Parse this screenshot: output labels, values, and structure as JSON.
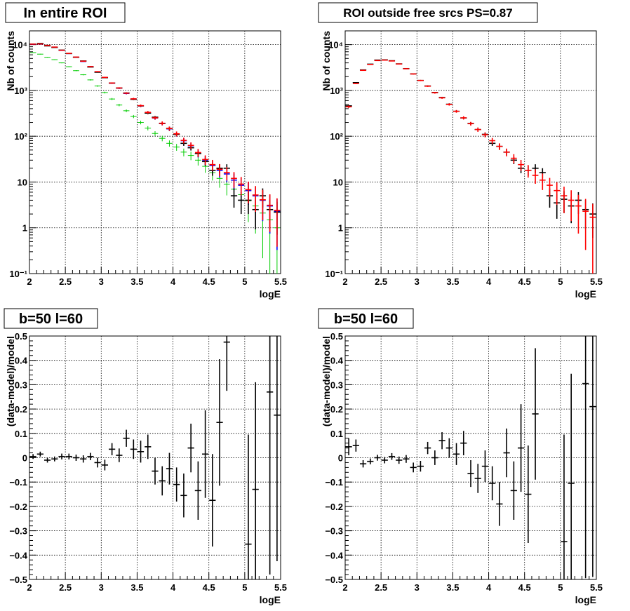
{
  "colors": {
    "data": "#000000",
    "model_total": "#ff0000",
    "model_blue": "#0000ff",
    "model_green": "#00cc00",
    "grid": "#000000"
  },
  "chart_data": [
    {
      "type": "scatter",
      "title": "In entire ROI",
      "xlabel": "logE",
      "ylabel": "Nb of counts",
      "xlim": [
        2,
        5.5
      ],
      "ylim": [
        0.1,
        20000
      ],
      "yscale": "log",
      "grid": true,
      "xticks": [
        2,
        2.5,
        3,
        3.5,
        4,
        4.5,
        5,
        5.5
      ],
      "xtick_labels": [
        "2",
        "2.5",
        "3",
        "3.5",
        "4",
        "4.5",
        "5",
        "5.5"
      ],
      "yticks": [
        0.1,
        1,
        10,
        100,
        1000,
        10000
      ],
      "ytick_labels": [
        "10⁻¹",
        "1",
        "10",
        "10²",
        "10³",
        "10⁴"
      ],
      "x": [
        2.05,
        2.15,
        2.25,
        2.35,
        2.45,
        2.55,
        2.65,
        2.75,
        2.85,
        2.95,
        3.05,
        3.15,
        3.25,
        3.35,
        3.45,
        3.55,
        3.65,
        3.75,
        3.85,
        3.95,
        4.05,
        4.15,
        4.25,
        4.35,
        4.45,
        4.55,
        4.65,
        4.75,
        4.85,
        4.95,
        5.05,
        5.15,
        5.25,
        5.35,
        5.45
      ],
      "series": [
        {
          "role": "data",
          "color": "#000000",
          "values": [
            10300,
            10600,
            9400,
            8700,
            7600,
            6400,
            5300,
            4400,
            3250,
            2500,
            1900,
            1450,
            1130,
            880,
            640,
            460,
            320,
            260,
            190,
            148,
            110,
            70,
            56,
            42,
            28,
            18,
            20,
            20,
            5,
            4,
            4,
            2.5,
            5,
            2.5,
            2.2
          ],
          "yerr_rel": [
            0.01,
            0.01,
            0.01,
            0.012,
            0.012,
            0.013,
            0.014,
            0.015,
            0.018,
            0.02,
            0.023,
            0.026,
            0.03,
            0.034,
            0.04,
            0.047,
            0.056,
            0.062,
            0.073,
            0.082,
            0.095,
            0.12,
            0.13,
            0.16,
            0.19,
            0.24,
            0.22,
            0.22,
            0.45,
            0.5,
            0.5,
            0.63,
            0.45,
            0.63,
            0.68
          ]
        },
        {
          "role": "model-blue",
          "color": "#0000ff",
          "values": [
            10200,
            10300,
            9600,
            8800,
            7500,
            6400,
            5300,
            4300,
            3300,
            2550,
            1920,
            1440,
            1120,
            860,
            650,
            460,
            330,
            250,
            190,
            145,
            112,
            80,
            62,
            43,
            30,
            23,
            18,
            15,
            11,
            8.5,
            6.5,
            5,
            4,
            3,
            2.3
          ]
        },
        {
          "role": "model-green",
          "color": "#00cc00",
          "values": [
            6700,
            6200,
            5300,
            4700,
            4000,
            3300,
            2700,
            2200,
            1700,
            1250,
            900,
            650,
            480,
            360,
            270,
            200,
            150,
            115,
            90,
            70,
            58,
            45,
            38,
            30,
            22,
            16,
            12,
            9,
            7,
            5.3,
            3.9,
            3,
            2.1,
            1.5,
            1.0
          ]
        },
        {
          "role": "model-total",
          "color": "#ff0000",
          "values": [
            10250,
            10350,
            9650,
            8850,
            7550,
            6450,
            5350,
            4350,
            3320,
            2570,
            1930,
            1450,
            1130,
            870,
            655,
            465,
            332,
            252,
            192,
            147,
            113,
            81,
            63,
            44,
            31,
            24,
            19,
            16,
            12,
            9,
            6.8,
            5.2,
            4.1,
            3.1,
            2.4
          ]
        }
      ]
    },
    {
      "type": "scatter",
      "title": "ROI outside free srcs PS=0.87",
      "xlabel": "logE",
      "ylabel": "Nb of counts",
      "xlim": [
        2,
        5.5
      ],
      "ylim": [
        0.1,
        20000
      ],
      "yscale": "log",
      "grid": true,
      "xticks": [
        2,
        2.5,
        3,
        3.5,
        4,
        4.5,
        5,
        5.5
      ],
      "xtick_labels": [
        "2",
        "2.5",
        "3",
        "3.5",
        "4",
        "4.5",
        "5",
        "5.5"
      ],
      "yticks": [
        0.1,
        1,
        10,
        100,
        1000,
        10000
      ],
      "ytick_labels": [
        "10⁻¹",
        "1",
        "10",
        "10²",
        "10³",
        "10⁴"
      ],
      "x": [
        2.05,
        2.15,
        2.25,
        2.35,
        2.45,
        2.55,
        2.65,
        2.75,
        2.85,
        2.95,
        3.05,
        3.15,
        3.25,
        3.35,
        3.45,
        3.55,
        3.65,
        3.75,
        3.85,
        3.95,
        4.05,
        4.15,
        4.25,
        4.35,
        4.45,
        4.55,
        4.65,
        4.75,
        4.85,
        4.95,
        5.05,
        5.15,
        5.25,
        5.35,
        5.45
      ],
      "series": [
        {
          "role": "data",
          "color": "#000000",
          "values": [
            460,
            1480,
            2800,
            3750,
            4600,
            4650,
            4450,
            3800,
            3000,
            2300,
            1650,
            1250,
            900,
            700,
            500,
            350,
            250,
            190,
            140,
            110,
            70,
            60,
            45,
            30,
            20,
            18,
            20,
            16,
            5,
            3.5,
            4.2,
            3,
            4,
            2.5,
            2
          ],
          "yerr_rel": [
            0.047,
            0.026,
            0.019,
            0.016,
            0.015,
            0.015,
            0.015,
            0.016,
            0.018,
            0.021,
            0.025,
            0.028,
            0.033,
            0.038,
            0.045,
            0.053,
            0.063,
            0.073,
            0.085,
            0.095,
            0.12,
            0.13,
            0.15,
            0.18,
            0.22,
            0.24,
            0.22,
            0.25,
            0.45,
            0.55,
            0.5,
            0.58,
            0.5,
            0.63,
            0.7
          ]
        },
        {
          "role": "model-total",
          "color": "#ff0000",
          "values": [
            440,
            1420,
            2750,
            3700,
            4500,
            4600,
            4400,
            3780,
            2980,
            2290,
            1650,
            1240,
            890,
            690,
            495,
            350,
            252,
            188,
            140,
            108,
            80,
            60,
            45,
            33,
            24,
            18,
            14,
            11,
            8.5,
            6.5,
            5,
            4,
            3,
            2.3,
            1.7
          ]
        }
      ]
    },
    {
      "type": "scatter",
      "title": "b=50 l=60",
      "xlabel": "logE",
      "ylabel": "(data-model)/model",
      "xlim": [
        2,
        5.5
      ],
      "ylim": [
        -0.5,
        0.5
      ],
      "grid": true,
      "xticks": [
        2,
        2.5,
        3,
        3.5,
        4,
        4.5,
        5,
        5.5
      ],
      "xtick_labels": [
        "2",
        "2.5",
        "3",
        "3.5",
        "4",
        "4.5",
        "5",
        "5.5"
      ],
      "yticks": [
        -0.5,
        -0.4,
        -0.3,
        -0.2,
        -0.1,
        0,
        0.1,
        0.2,
        0.3,
        0.4,
        0.5
      ],
      "ytick_labels": [
        "−0.5",
        "−0.4",
        "−0.3",
        "−0.2",
        "−0.1",
        "0",
        "0.1",
        "0.2",
        "0.3",
        "0.4",
        "0.5"
      ],
      "x": [
        2.05,
        2.15,
        2.25,
        2.35,
        2.45,
        2.55,
        2.65,
        2.75,
        2.85,
        2.95,
        3.05,
        3.15,
        3.25,
        3.35,
        3.45,
        3.55,
        3.65,
        3.75,
        3.85,
        3.95,
        4.05,
        4.15,
        4.25,
        4.35,
        4.45,
        4.55,
        4.65,
        4.75,
        5.05,
        5.15,
        5.35,
        5.45
      ],
      "series": [
        {
          "role": "data",
          "color": "#000000",
          "values": [
            0.005,
            0.015,
            -0.01,
            -0.005,
            0.005,
            0.005,
            0,
            -0.005,
            0.005,
            -0.02,
            -0.03,
            0.035,
            0.01,
            0.08,
            0.035,
            0.025,
            0.045,
            -0.055,
            -0.095,
            -0.045,
            -0.11,
            -0.155,
            0.04,
            -0.135,
            0.015,
            -0.175,
            0.145,
            0.475,
            -0.355,
            -0.13,
            0.27,
            0.175
          ],
          "yerr": [
            0.01,
            0.01,
            0.01,
            0.01,
            0.012,
            0.012,
            0.013,
            0.015,
            0.015,
            0.02,
            0.022,
            0.025,
            0.028,
            0.035,
            0.04,
            0.045,
            0.05,
            0.055,
            0.06,
            0.065,
            0.07,
            0.09,
            0.1,
            0.12,
            0.18,
            0.19,
            0.26,
            0.2,
            0.45,
            0.44,
            0.75,
            0.6
          ]
        }
      ]
    },
    {
      "type": "scatter",
      "title": "b=50 l=60",
      "xlabel": "logE",
      "ylabel": "(data-model)/model",
      "xlim": [
        2,
        5.5
      ],
      "ylim": [
        -0.5,
        0.5
      ],
      "grid": true,
      "xticks": [
        2,
        2.5,
        3,
        3.5,
        4,
        4.5,
        5,
        5.5
      ],
      "xtick_labels": [
        "2",
        "2.5",
        "3",
        "3.5",
        "4",
        "4.5",
        "5",
        "5.5"
      ],
      "yticks": [
        -0.5,
        -0.4,
        -0.3,
        -0.2,
        -0.1,
        0,
        0.1,
        0.2,
        0.3,
        0.4,
        0.5
      ],
      "ytick_labels": [
        "−0.5",
        "−0.4",
        "−0.3",
        "−0.2",
        "−0.1",
        "0",
        "0.1",
        "0.2",
        "0.3",
        "0.4",
        "0.5"
      ],
      "x": [
        2.05,
        2.15,
        2.25,
        2.35,
        2.45,
        2.55,
        2.65,
        2.75,
        2.85,
        2.95,
        3.05,
        3.15,
        3.25,
        3.35,
        3.45,
        3.55,
        3.65,
        3.75,
        3.85,
        3.95,
        4.05,
        4.15,
        4.25,
        4.35,
        4.45,
        4.55,
        4.65,
        5.05,
        5.15,
        5.35,
        5.45
      ],
      "series": [
        {
          "role": "data",
          "color": "#000000",
          "values": [
            0.045,
            0.05,
            -0.025,
            -0.015,
            0,
            -0.01,
            0.005,
            -0.01,
            -0.005,
            -0.04,
            -0.035,
            0.04,
            0,
            0.07,
            0.04,
            0.015,
            0.06,
            -0.065,
            -0.085,
            -0.035,
            -0.105,
            -0.19,
            0.02,
            -0.135,
            0.04,
            -0.15,
            0.18,
            -0.345,
            -0.105,
            0.305,
            0.21
          ],
          "yerr": [
            0.035,
            0.025,
            0.015,
            0.012,
            0.012,
            0.013,
            0.014,
            0.015,
            0.016,
            0.02,
            0.022,
            0.025,
            0.03,
            0.035,
            0.04,
            0.045,
            0.05,
            0.055,
            0.06,
            0.065,
            0.07,
            0.09,
            0.1,
            0.12,
            0.18,
            0.2,
            0.27,
            0.44,
            0.45,
            0.8,
            0.7
          ]
        }
      ]
    }
  ]
}
